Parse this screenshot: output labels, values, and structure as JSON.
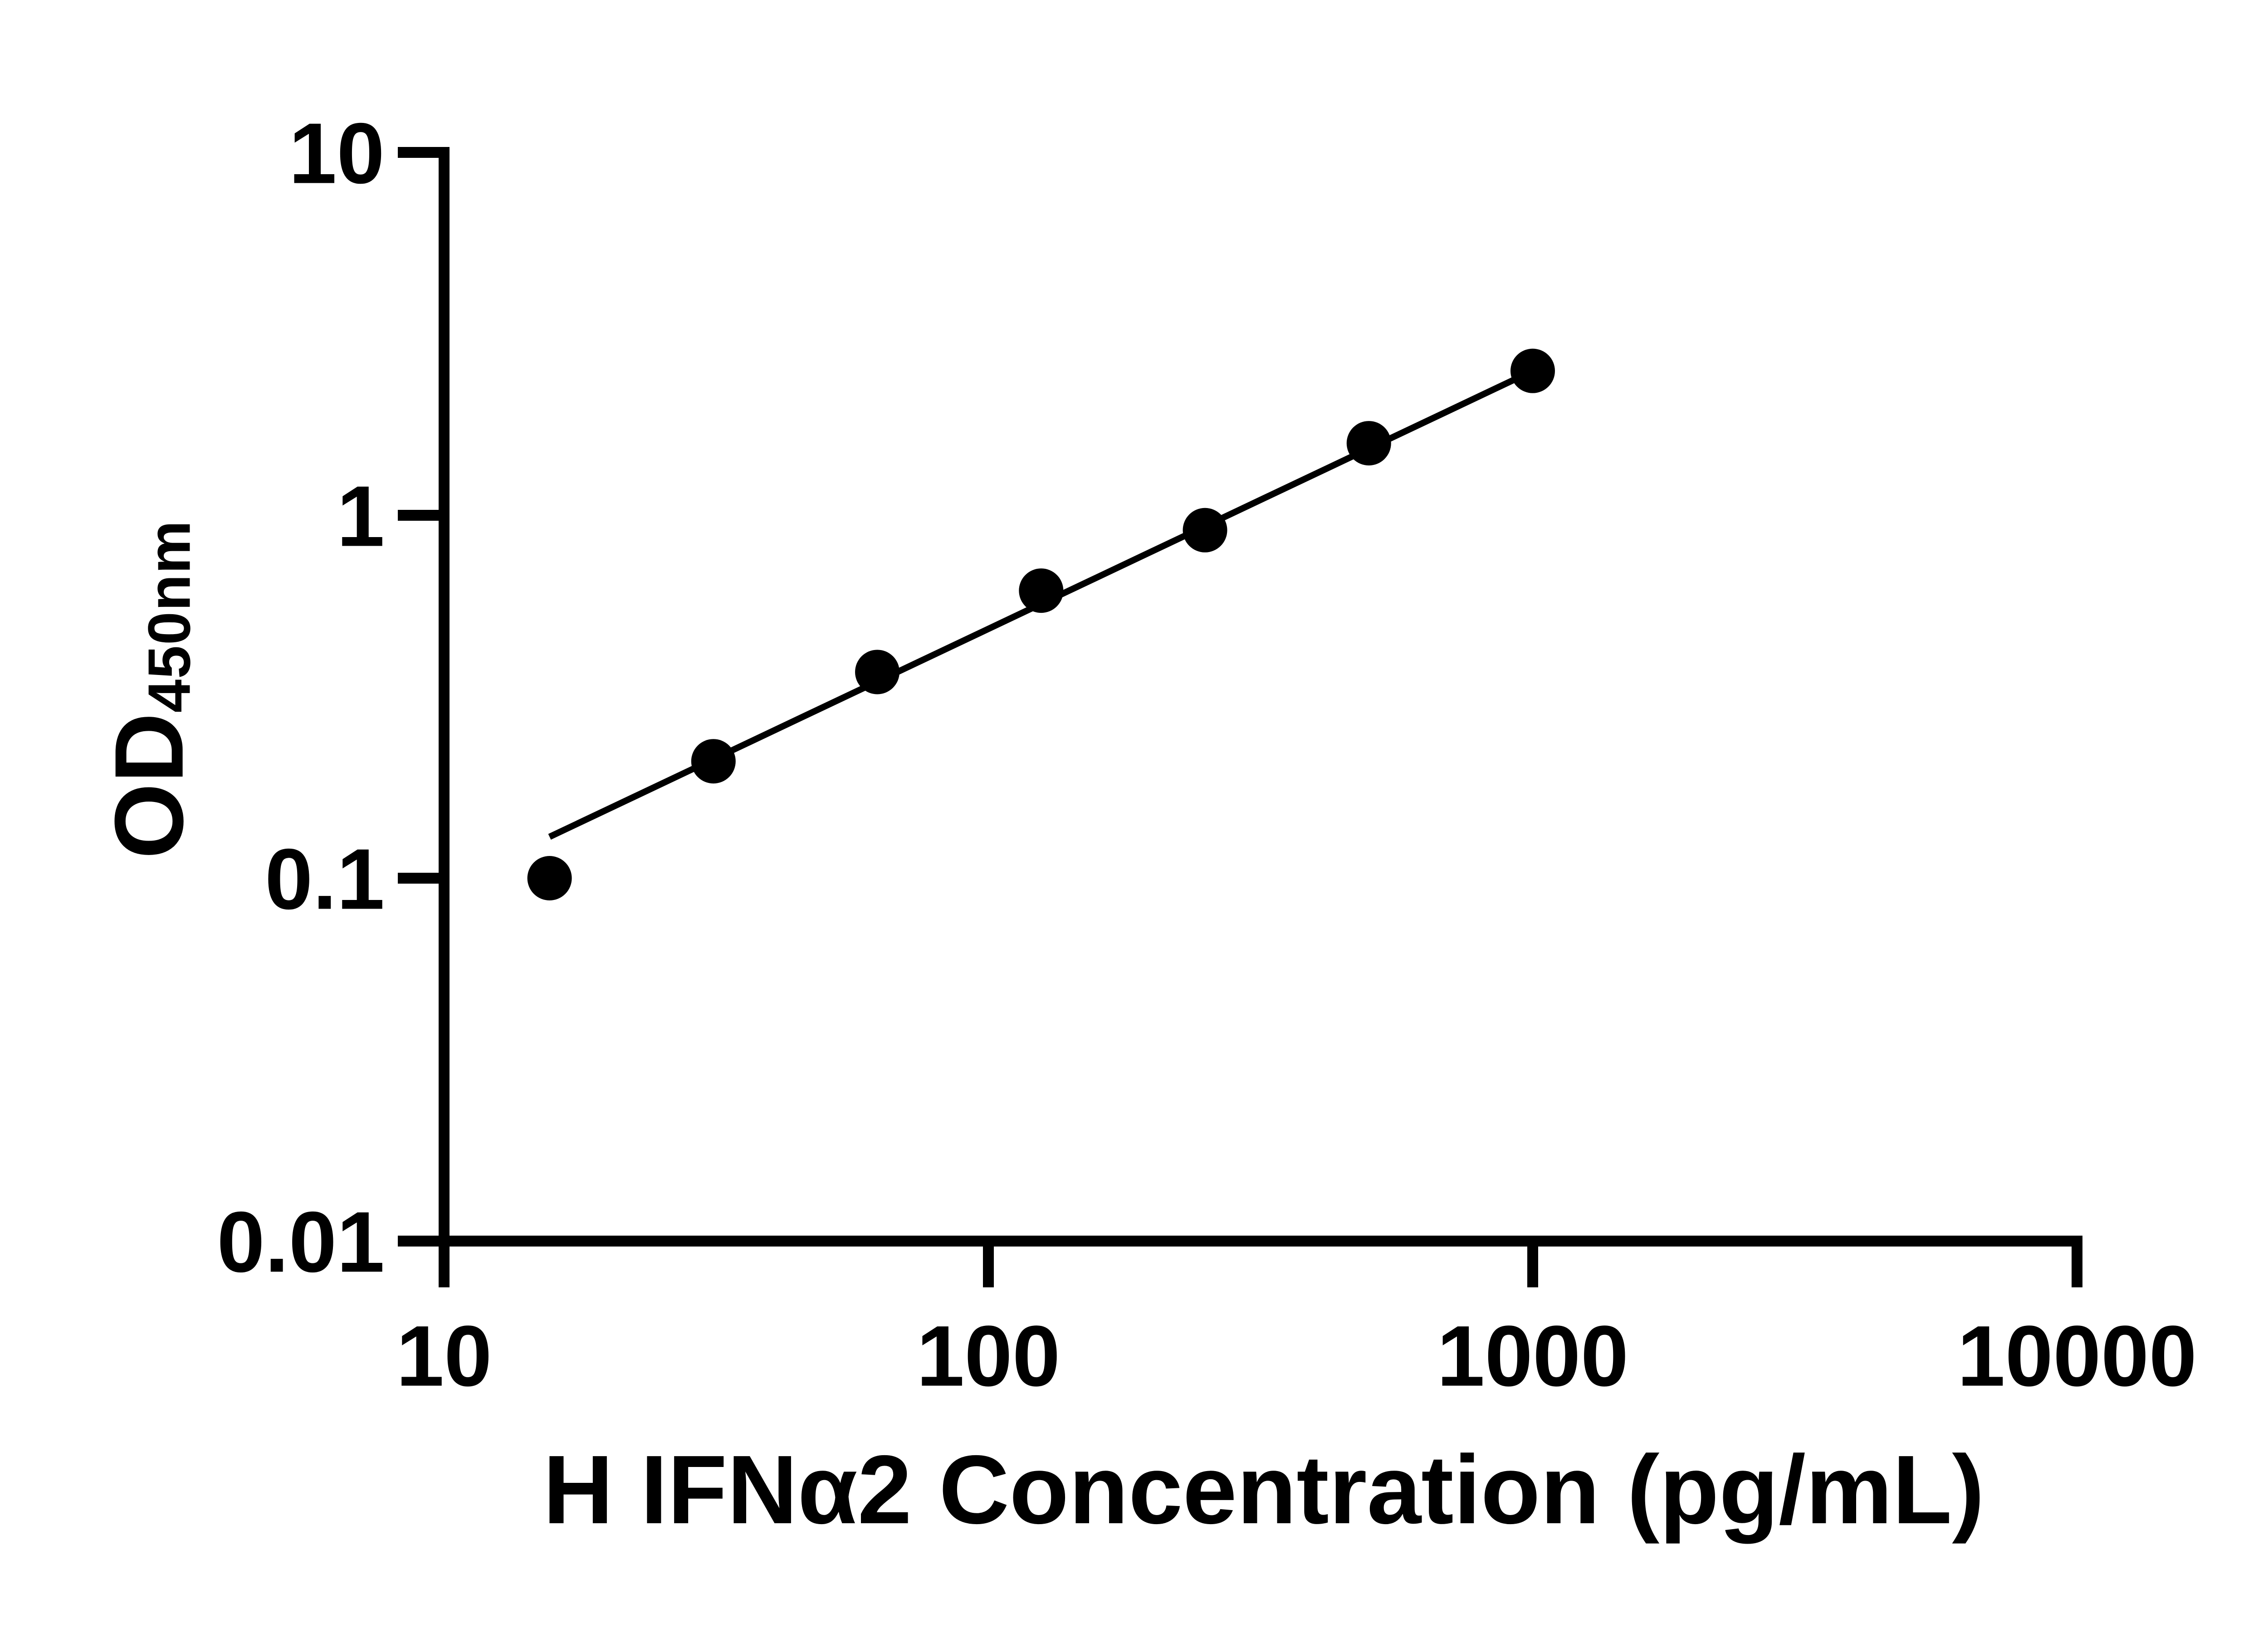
{
  "figure": {
    "background": "#ffffff",
    "ink": "#000000"
  },
  "y_axis": {
    "label_main": "OD",
    "label_sub": "450nm",
    "scale": "log",
    "range": [
      0.01,
      10
    ],
    "tick_values": [
      10,
      1,
      0.1,
      0.01
    ],
    "tick_labels": [
      "10",
      "1",
      "0.1",
      "0.01"
    ]
  },
  "x_axis": {
    "title": "H IFNα2 Concentration (pg/mL)",
    "scale": "log",
    "range": [
      10,
      10000
    ],
    "tick_values": [
      10,
      100,
      1000,
      10000
    ],
    "tick_labels": [
      "10",
      "100",
      "1000",
      "10000"
    ]
  },
  "chart_data": {
    "type": "scatter",
    "title": "",
    "xlabel": "H IFNα2 Concentration (pg/mL)",
    "ylabel": "OD450nm",
    "x_scale": "log",
    "y_scale": "log",
    "xlim": [
      10,
      10000
    ],
    "ylim": [
      0.01,
      10
    ],
    "grid": false,
    "legend": "none",
    "x": [
      15.625,
      31.25,
      62.5,
      125,
      250,
      500,
      1000
    ],
    "y": [
      0.1,
      0.21,
      0.37,
      0.62,
      0.91,
      1.58,
      2.5
    ],
    "marker": {
      "shape": "filled-circle",
      "color": "#000000"
    },
    "trend_line": {
      "type": "linear-loglog",
      "x_start": 15.625,
      "y_start": 0.13,
      "x_end": 1000,
      "y_end": 2.5
    }
  }
}
